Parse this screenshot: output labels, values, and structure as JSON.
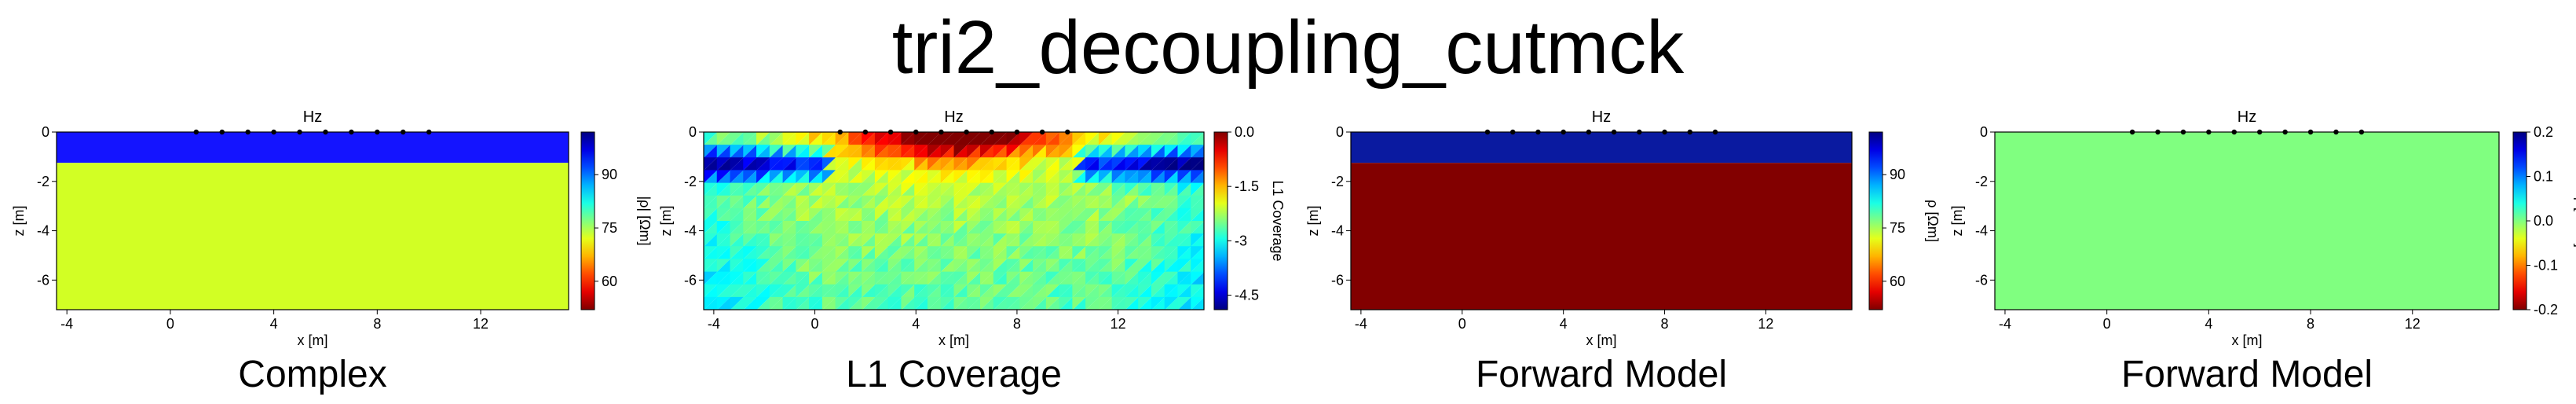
{
  "title": "tri2_decoupling_cutmck",
  "chart_data": [
    {
      "type": "heatmap",
      "annotation": "Hz",
      "subtitle": "Complex",
      "xlabel": "x [m]",
      "ylabel": "z [m]",
      "xticks": [
        -4,
        0,
        4,
        8,
        12
      ],
      "xlim": [
        -4.4,
        15.4
      ],
      "yticks": [
        0,
        -2,
        -4,
        -6
      ],
      "ylim": [
        -7.2,
        0
      ],
      "colorbar": {
        "label": "|ρ| [Ωm]",
        "colormap": "jet_r",
        "ticks": [
          90,
          75,
          60
        ],
        "range": [
          52,
          102
        ]
      },
      "layers": [
        {
          "z_top": 0,
          "z_bottom": -1.25,
          "value": 100,
          "color": "#1414ff"
        },
        {
          "z_top": -1.25,
          "z_bottom": -7.2,
          "value": 75,
          "color": "#d2ff24"
        }
      ],
      "electrodes_x": [
        1,
        2,
        3,
        4,
        5,
        6,
        7,
        8,
        9,
        10
      ]
    },
    {
      "type": "heatmap",
      "annotation": "Hz",
      "subtitle": "L1 Coverage",
      "xlabel": "x [m]",
      "ylabel": "z [m]",
      "xticks": [
        -4,
        0,
        4,
        8,
        12
      ],
      "xlim": [
        -4.4,
        15.4
      ],
      "yticks": [
        0,
        -2,
        -4,
        -6
      ],
      "ylim": [
        -7.2,
        0
      ],
      "colorbar": {
        "label": "L1 Coverage",
        "colormap": "jet",
        "ticks": [
          0.0,
          -1.5,
          -3.0,
          -4.5
        ],
        "range": [
          -4.9,
          0
        ]
      },
      "electrodes_x": [
        1,
        2,
        3,
        4,
        5,
        6,
        7,
        8,
        9,
        10
      ]
    },
    {
      "type": "heatmap",
      "annotation": "Hz",
      "subtitle": "Forward Model",
      "xlabel": "x [m]",
      "ylabel": "z [m]",
      "xticks": [
        -4,
        0,
        4,
        8,
        12
      ],
      "xlim": [
        -4.4,
        15.4
      ],
      "yticks": [
        0,
        -2,
        -4,
        -6
      ],
      "ylim": [
        -7.2,
        0
      ],
      "colorbar": {
        "label": "ρ [Ωm]",
        "colormap": "jet_r",
        "ticks": [
          90,
          75,
          60
        ],
        "range": [
          52,
          102
        ]
      },
      "layers": [
        {
          "z_top": 0,
          "z_bottom": -1.25,
          "value": 100,
          "color": "#0a1aa0"
        },
        {
          "z_top": -1.25,
          "z_bottom": -7.2,
          "value": 50,
          "color": "#820000"
        }
      ],
      "electrodes_x": [
        1,
        2,
        3,
        4,
        5,
        6,
        7,
        8,
        9,
        10
      ]
    },
    {
      "type": "heatmap",
      "annotation": "Hz",
      "subtitle": "Forward Model",
      "xlabel": "x [m]",
      "ylabel": "z [m]",
      "xticks": [
        -4,
        0,
        4,
        8,
        12
      ],
      "xlim": [
        -4.4,
        15.4
      ],
      "yticks": [
        0,
        -2,
        -4,
        -6
      ],
      "ylim": [
        -7.2,
        0
      ],
      "colorbar": {
        "label": "φ [mrad]",
        "colormap": "jet_r",
        "ticks": [
          0.2,
          0.1,
          0.0,
          -0.1,
          -0.2
        ],
        "range": [
          -0.2,
          0.2
        ]
      },
      "layers": [
        {
          "z_top": 0,
          "z_bottom": -7.2,
          "value": 0.0,
          "color": "#80ff80"
        }
      ],
      "electrodes_x": [
        1,
        2,
        3,
        4,
        5,
        6,
        7,
        8,
        9,
        10
      ]
    }
  ]
}
